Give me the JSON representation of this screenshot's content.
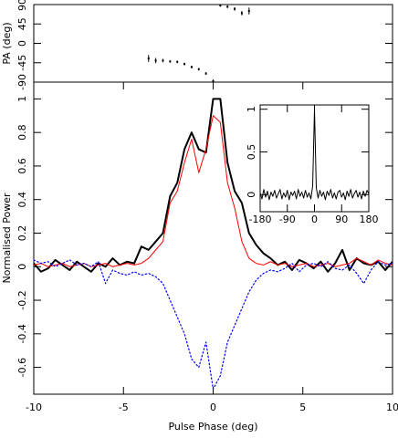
{
  "chart_data": [
    {
      "type": "errorbar",
      "ylabel": "PA (deg)",
      "xlim": [
        -10,
        10
      ],
      "ylim": [
        -90,
        90
      ],
      "yticks": [
        -90,
        -45,
        0,
        45,
        90
      ],
      "color": "#000000",
      "x": [
        -3.6,
        -3.2,
        -2.8,
        -2.4,
        -2.0,
        -1.6,
        -1.2,
        -0.8,
        -0.4,
        0.0,
        0.4,
        0.8,
        1.2,
        1.6,
        2.0
      ],
      "values": [
        -35,
        -40,
        -40,
        -42,
        -43,
        -48,
        -55,
        -60,
        -70,
        -88,
        88,
        85,
        80,
        70,
        75
      ],
      "errors": [
        8,
        6,
        4,
        3,
        3,
        3,
        3,
        3,
        3,
        4,
        3,
        3,
        4,
        5,
        8
      ]
    },
    {
      "type": "line",
      "xlabel": "Pulse Phase (deg)",
      "ylabel": "Normalised Power",
      "xlim": [
        -10,
        10
      ],
      "xticks": [
        -10,
        -5,
        0,
        5,
        10
      ],
      "ylim": [
        -0.76,
        1.1
      ],
      "yticks": [
        -0.6,
        -0.4,
        -0.2,
        0,
        0.2,
        0.4,
        0.6,
        0.8,
        1
      ],
      "x": [
        -10,
        -9.6,
        -9.2,
        -8.8,
        -8.4,
        -8,
        -7.6,
        -7.2,
        -6.8,
        -6.4,
        -6,
        -5.6,
        -5.2,
        -4.8,
        -4.4,
        -4,
        -3.6,
        -3.2,
        -2.8,
        -2.4,
        -2,
        -1.6,
        -1.2,
        -0.8,
        -0.4,
        0,
        0.4,
        0.8,
        1.2,
        1.6,
        2,
        2.4,
        2.8,
        3.2,
        3.6,
        4,
        4.4,
        4.8,
        5.2,
        5.6,
        6,
        6.4,
        6.8,
        7.2,
        7.6,
        8,
        8.4,
        8.8,
        9.2,
        9.6,
        10
      ],
      "series": [
        {
          "color": "#000000",
          "width": 2,
          "dash": "solid",
          "values": [
            0.02,
            -0.03,
            -0.01,
            0.04,
            0.01,
            -0.02,
            0.03,
            0,
            -0.03,
            0.02,
            0,
            0.05,
            0.01,
            0.03,
            0.02,
            0.12,
            0.1,
            0.15,
            0.2,
            0.42,
            0.5,
            0.7,
            0.8,
            0.7,
            0.68,
            1.0,
            1.0,
            0.62,
            0.45,
            0.38,
            0.2,
            0.13,
            0.08,
            0.05,
            0.01,
            0.03,
            -0.02,
            0.04,
            0.02,
            -0.01,
            0.03,
            -0.03,
            0.02,
            0.1,
            -0.02,
            0.05,
            0.02,
            0.01,
            0.03,
            -0.02,
            0.03
          ]
        },
        {
          "color": "#ff0000",
          "width": 1,
          "dash": "solid",
          "values": [
            0.01,
            0.02,
            0,
            0.01,
            0.02,
            0,
            0.01,
            0.02,
            0,
            0.01,
            0.02,
            0,
            0.01,
            0.02,
            0.01,
            0.02,
            0.05,
            0.1,
            0.15,
            0.38,
            0.45,
            0.62,
            0.76,
            0.56,
            0.7,
            0.9,
            0.86,
            0.5,
            0.35,
            0.15,
            0.05,
            0.02,
            0.01,
            0.03,
            0.01,
            0.02,
            0,
            0.01,
            0.02,
            0,
            0.01,
            0.02,
            0,
            0.01,
            0.02,
            0.05,
            0.03,
            0.01,
            0.04,
            0.02,
            0.01
          ]
        },
        {
          "color": "#0000ff",
          "width": 1.2,
          "dash": "dotted",
          "values": [
            0.04,
            0.02,
            0.03,
            0,
            0.02,
            0.04,
            0.01,
            0.02,
            0,
            0.03,
            -0.1,
            -0.02,
            -0.04,
            -0.05,
            -0.03,
            -0.05,
            -0.04,
            -0.06,
            -0.1,
            -0.2,
            -0.3,
            -0.4,
            -0.55,
            -0.6,
            -0.45,
            -0.73,
            -0.65,
            -0.45,
            -0.35,
            -0.25,
            -0.15,
            -0.08,
            -0.04,
            -0.02,
            -0.03,
            -0.01,
            0.02,
            -0.03,
            0.01,
            0.02,
            0,
            0.03,
            -0.01,
            -0.02,
            0.01,
            -0.04,
            -0.1,
            -0.02,
            0.03,
            0.01,
            0.02
          ]
        }
      ]
    },
    {
      "type": "line",
      "xlim": [
        -180,
        180
      ],
      "xticks": [
        -180,
        -90,
        0,
        90,
        180
      ],
      "ylim": [
        -0.2,
        1.05
      ],
      "yticks": [
        0,
        0.5,
        1
      ],
      "x": [
        -180,
        -174,
        -168,
        -162,
        -156,
        -150,
        -144,
        -138,
        -132,
        -126,
        -120,
        -114,
        -108,
        -102,
        -96,
        -90,
        -84,
        -78,
        -72,
        -66,
        -60,
        -54,
        -48,
        -42,
        -36,
        -30,
        -24,
        -18,
        -12,
        -6,
        0,
        6,
        12,
        18,
        24,
        30,
        36,
        42,
        48,
        54,
        60,
        66,
        72,
        78,
        84,
        90,
        96,
        102,
        108,
        114,
        120,
        126,
        132,
        138,
        144,
        150,
        156,
        162,
        168,
        174,
        180
      ],
      "series": [
        {
          "color": "#000000",
          "width": 1,
          "dash": "solid",
          "values": [
            0.02,
            -0.05,
            0.06,
            -0.03,
            0.04,
            -0.06,
            0.03,
            -0.02,
            0.05,
            -0.04,
            0.01,
            0.06,
            -0.05,
            0.02,
            -0.03,
            0.05,
            -0.06,
            0.03,
            -0.01,
            0.04,
            -0.05,
            0.06,
            -0.02,
            0.03,
            -0.04,
            0.05,
            -0.03,
            0.02,
            -0.05,
            0.1,
            1.0,
            0.08,
            -0.04,
            0.05,
            -0.02,
            0.03,
            -0.06,
            0.04,
            -0.01,
            0.06,
            -0.04,
            0.02,
            -0.05,
            0.03,
            0.05,
            -0.03,
            0.02,
            -0.06,
            0.04,
            -0.02,
            0.06,
            -0.04,
            0.01,
            0.05,
            -0.03,
            0.03,
            -0.05,
            0.04,
            -0.02,
            0.05,
            0.01
          ]
        }
      ]
    }
  ]
}
